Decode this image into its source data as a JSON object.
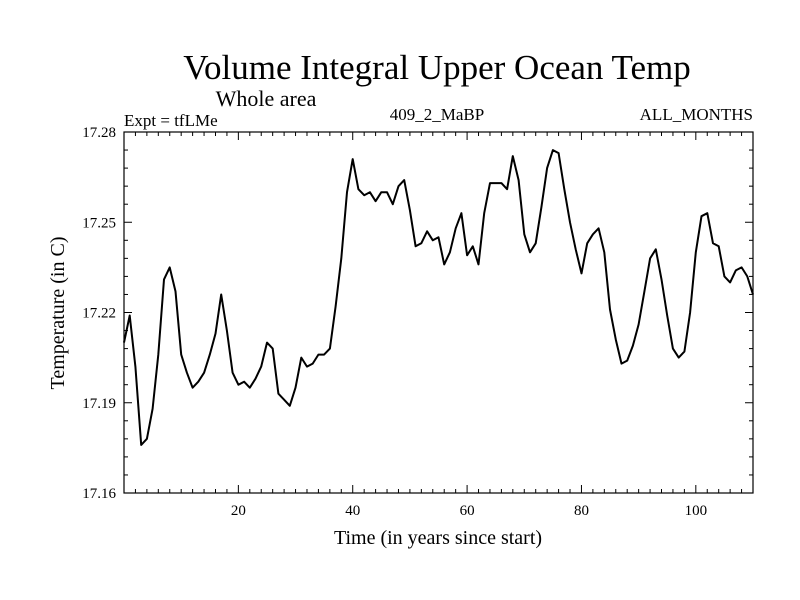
{
  "chart_data": {
    "type": "line",
    "title": "Volume Integral Upper Ocean Temp",
    "subtitle": "Whole area",
    "header_left": "Expt = tfLMe",
    "header_center": "409_2_MaBP",
    "header_right": "ALL_MONTHS",
    "xlabel": "Time (in years since start)",
    "ylabel": "Temperature (in C)",
    "xlim": [
      0,
      110
    ],
    "ylim": [
      17.16,
      17.28
    ],
    "xticks": [
      20,
      40,
      60,
      80,
      100
    ],
    "xtick_labels": [
      "20",
      "40",
      "60",
      "80",
      "100"
    ],
    "yticks": [
      17.16,
      17.19,
      17.22,
      17.25,
      17.28
    ],
    "ytick_labels": [
      "17.16",
      "17.19",
      "17.22",
      "17.25",
      "17.28"
    ],
    "series": [
      {
        "name": "Volume Integral Upper Ocean Temp",
        "color": "#000000",
        "x": [
          0,
          1,
          2,
          3,
          4,
          5,
          6,
          7,
          8,
          9,
          10,
          11,
          12,
          13,
          14,
          15,
          16,
          17,
          18,
          19,
          20,
          21,
          22,
          23,
          24,
          25,
          26,
          27,
          28,
          29,
          30,
          31,
          32,
          33,
          34,
          35,
          36,
          37,
          38,
          39,
          40,
          41,
          42,
          43,
          44,
          45,
          46,
          47,
          48,
          49,
          50,
          51,
          52,
          53,
          54,
          55,
          56,
          57,
          58,
          59,
          60,
          61,
          62,
          63,
          64,
          65,
          66,
          67,
          68,
          69,
          70,
          71,
          72,
          73,
          74,
          75,
          76,
          77,
          78,
          79,
          80,
          81,
          82,
          83,
          84,
          85,
          86,
          87,
          88,
          89,
          90,
          91,
          92,
          93,
          94,
          95,
          96,
          97,
          98,
          99,
          100,
          101,
          102,
          103,
          104,
          105,
          106,
          107,
          108,
          109,
          110
        ],
        "y": [
          17.21,
          17.219,
          17.202,
          17.176,
          17.178,
          17.188,
          17.206,
          17.231,
          17.235,
          17.227,
          17.206,
          17.2,
          17.195,
          17.197,
          17.2,
          17.206,
          17.213,
          17.226,
          17.214,
          17.2,
          17.196,
          17.197,
          17.195,
          17.198,
          17.202,
          17.21,
          17.208,
          17.193,
          17.191,
          17.189,
          17.195,
          17.205,
          17.202,
          17.203,
          17.206,
          17.206,
          17.208,
          17.222,
          17.238,
          17.26,
          17.271,
          17.261,
          17.259,
          17.26,
          17.257,
          17.26,
          17.26,
          17.256,
          17.262,
          17.264,
          17.254,
          17.242,
          17.243,
          17.247,
          17.244,
          17.245,
          17.236,
          17.24,
          17.248,
          17.253,
          17.239,
          17.242,
          17.236,
          17.253,
          17.263,
          17.263,
          17.263,
          17.261,
          17.272,
          17.264,
          17.246,
          17.24,
          17.243,
          17.255,
          17.268,
          17.274,
          17.273,
          17.261,
          17.25,
          17.241,
          17.233,
          17.243,
          17.246,
          17.248,
          17.24,
          17.221,
          17.211,
          17.203,
          17.204,
          17.209,
          17.216,
          17.227,
          17.238,
          17.241,
          17.231,
          17.219,
          17.208,
          17.205,
          17.207,
          17.22,
          17.24,
          17.252,
          17.253,
          17.243,
          17.242,
          17.232,
          17.23,
          17.234,
          17.235,
          17.232,
          17.226
        ]
      }
    ]
  }
}
